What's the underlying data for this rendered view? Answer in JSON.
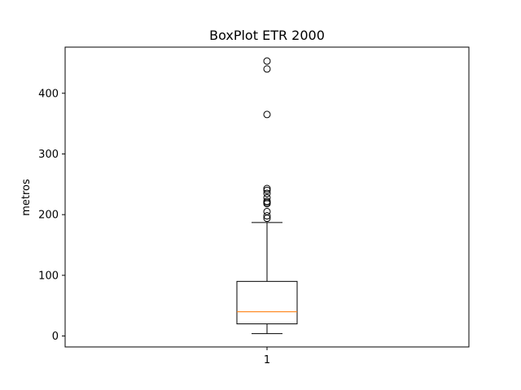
{
  "chart_data": {
    "type": "boxplot",
    "title": "BoxPlot ETR 2000",
    "xlabel": "",
    "ylabel": "metros",
    "categories": [
      "1"
    ],
    "ylim": [
      -18,
      476
    ],
    "yticks": [
      0,
      100,
      200,
      300,
      400
    ],
    "grid": false,
    "boxes": [
      {
        "label": "1",
        "whisker_low": 4,
        "q1": 20,
        "median": 40,
        "q3": 90,
        "whisker_high": 187,
        "outliers": [
          194,
          198,
          205,
          218,
          220,
          222,
          228,
          235,
          240,
          243,
          365,
          440,
          453
        ]
      }
    ],
    "colors": {
      "box": "#000000",
      "median": "#ff7f0e",
      "outlier": "#000000"
    }
  }
}
